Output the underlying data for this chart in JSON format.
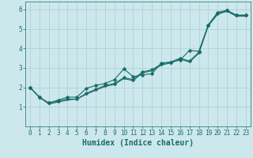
{
  "xlabel": "Humidex (Indice chaleur)",
  "ylabel": "",
  "bg_color": "#cce8ec",
  "grid_color": "#aacdd4",
  "line_color": "#1a6b6b",
  "xlim": [
    -0.5,
    23.5
  ],
  "ylim": [
    0,
    6.4
  ],
  "xticks": [
    0,
    1,
    2,
    3,
    4,
    5,
    6,
    7,
    8,
    9,
    10,
    11,
    12,
    13,
    14,
    15,
    16,
    17,
    18,
    19,
    20,
    21,
    22,
    23
  ],
  "yticks": [
    1,
    2,
    3,
    4,
    5,
    6
  ],
  "line1_x": [
    0,
    1,
    2,
    3,
    4,
    5,
    6,
    7,
    8,
    9,
    10,
    11,
    12,
    13,
    14,
    15,
    16,
    17,
    18,
    19,
    20,
    21,
    22,
    23
  ],
  "line1_y": [
    2.0,
    1.5,
    1.2,
    1.3,
    1.4,
    1.4,
    1.7,
    1.9,
    2.1,
    2.2,
    2.5,
    2.4,
    2.8,
    2.9,
    3.2,
    3.3,
    3.5,
    3.35,
    3.8,
    5.2,
    5.8,
    5.95,
    5.7,
    5.7
  ],
  "line2_x": [
    0,
    1,
    2,
    3,
    4,
    5,
    6,
    7,
    8,
    9,
    10,
    11,
    12,
    13,
    14,
    15,
    16,
    17,
    18,
    19,
    20,
    21,
    22,
    23
  ],
  "line2_y": [
    2.0,
    1.5,
    1.15,
    1.25,
    1.35,
    1.4,
    1.65,
    1.85,
    2.05,
    2.15,
    2.45,
    2.35,
    2.75,
    2.85,
    3.15,
    3.25,
    3.45,
    3.3,
    3.75,
    5.15,
    5.75,
    5.9,
    5.65,
    5.65
  ],
  "line3_x": [
    0,
    1,
    2,
    3,
    4,
    5,
    6,
    7,
    8,
    9,
    10,
    11,
    12,
    13,
    14,
    15,
    16,
    17,
    18,
    19,
    20,
    21,
    22,
    23
  ],
  "line3_y": [
    2.0,
    1.5,
    1.2,
    1.35,
    1.5,
    1.5,
    1.95,
    2.1,
    2.2,
    2.4,
    2.95,
    2.55,
    2.65,
    2.7,
    3.25,
    3.3,
    3.4,
    3.9,
    3.85,
    5.2,
    5.85,
    5.95,
    5.7,
    5.7
  ],
  "marker": "D",
  "marker_size": 2.5,
  "line_width": 0.8,
  "xlabel_fontsize": 7,
  "tick_fontsize": 5.5
}
